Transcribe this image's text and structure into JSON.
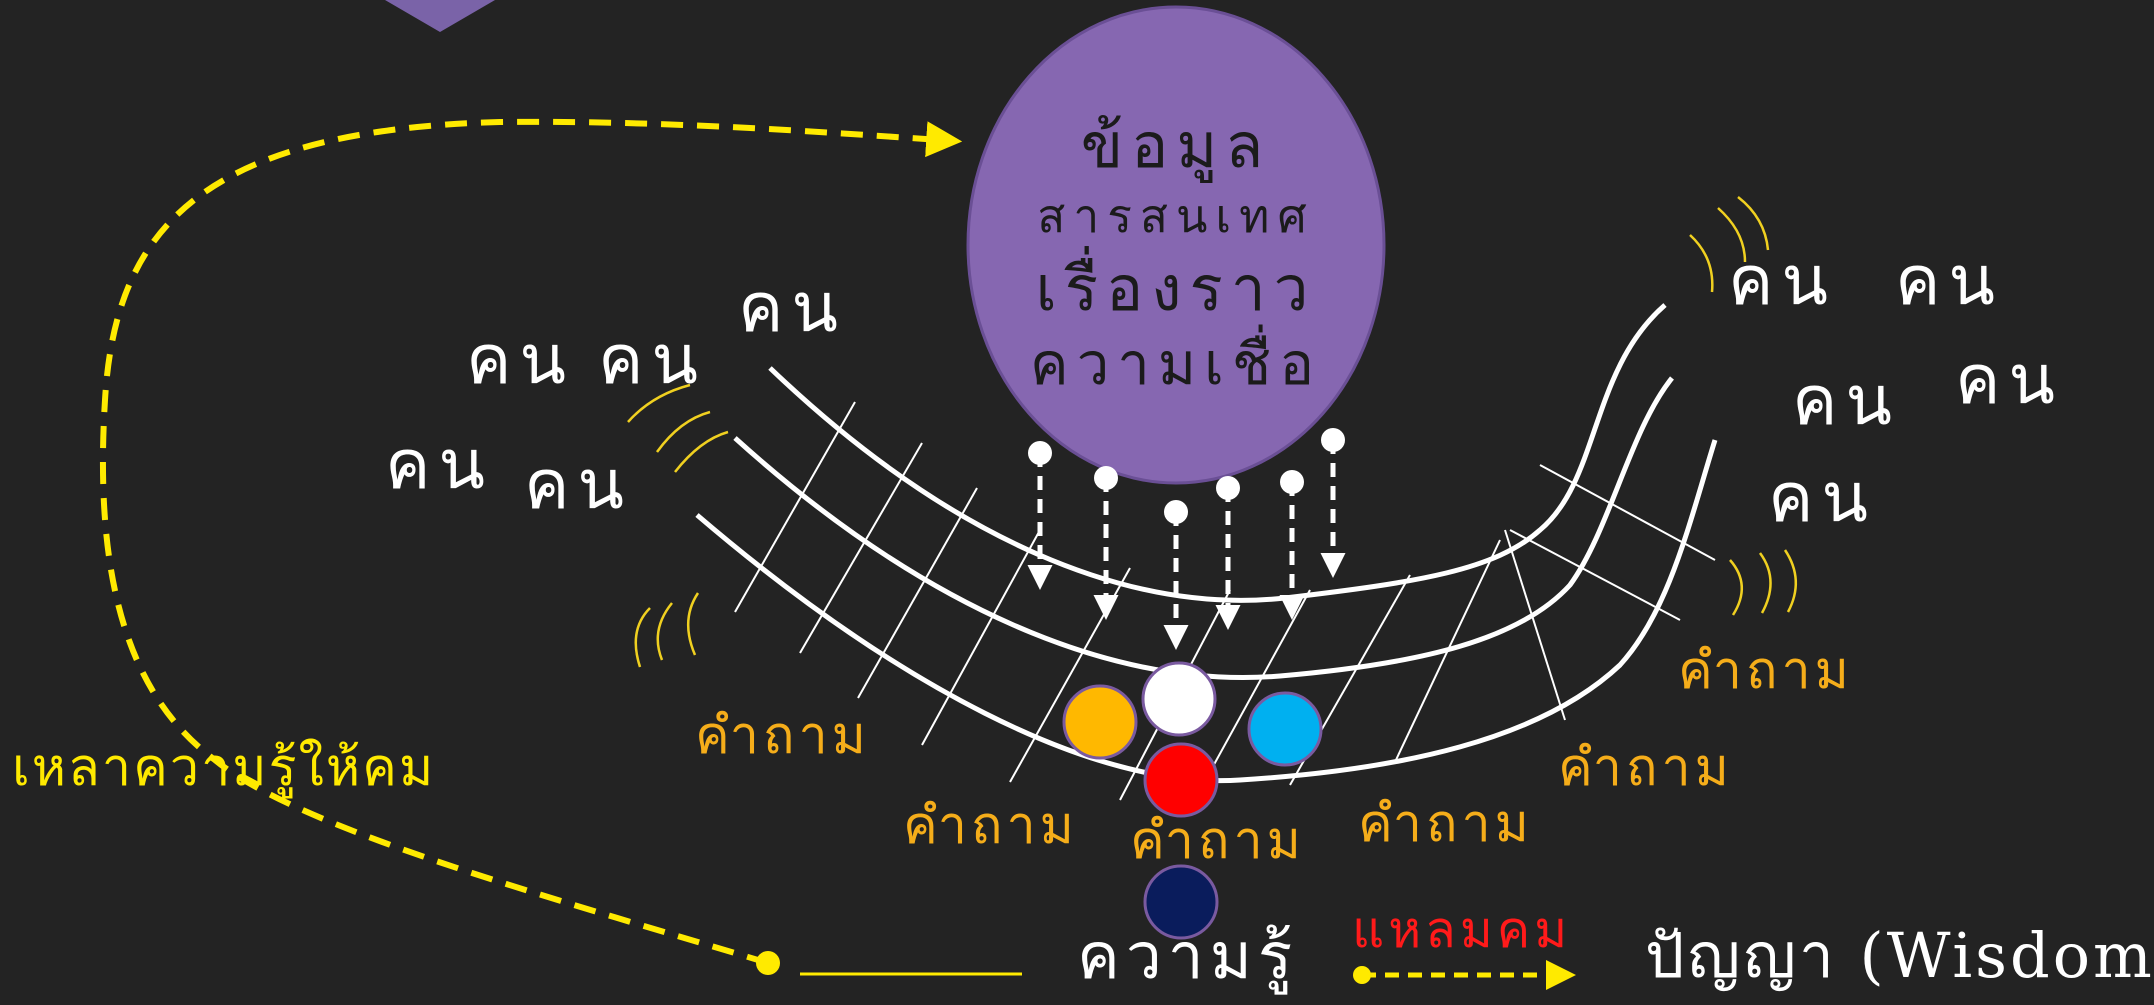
{
  "info_circle": {
    "lines": [
      "ข้อมูล",
      "สารสนเทศ",
      "เรื่องราว",
      "ความเชื่อ"
    ]
  },
  "people_label": "คน",
  "question_label": "คำถาม",
  "sharpen_label": "เหลาความรู้ให้คม",
  "knowledge_label": "ความรู้",
  "sharp_label": "แหลมคม",
  "wisdom_label": "ปัญญา (Wisdom)",
  "colors": {
    "background": "#232323",
    "info_circle": "#8667b1",
    "dashed_yellow": "#ffea00",
    "question_text": "#f5ad1a",
    "sharp_text": "#ff1a1a",
    "ball_yellow": "#ffb800",
    "ball_white": "#ffffff",
    "ball_blue": "#00b0f0",
    "ball_red": "#ff0000",
    "ball_navy": "#0a1c5c"
  }
}
